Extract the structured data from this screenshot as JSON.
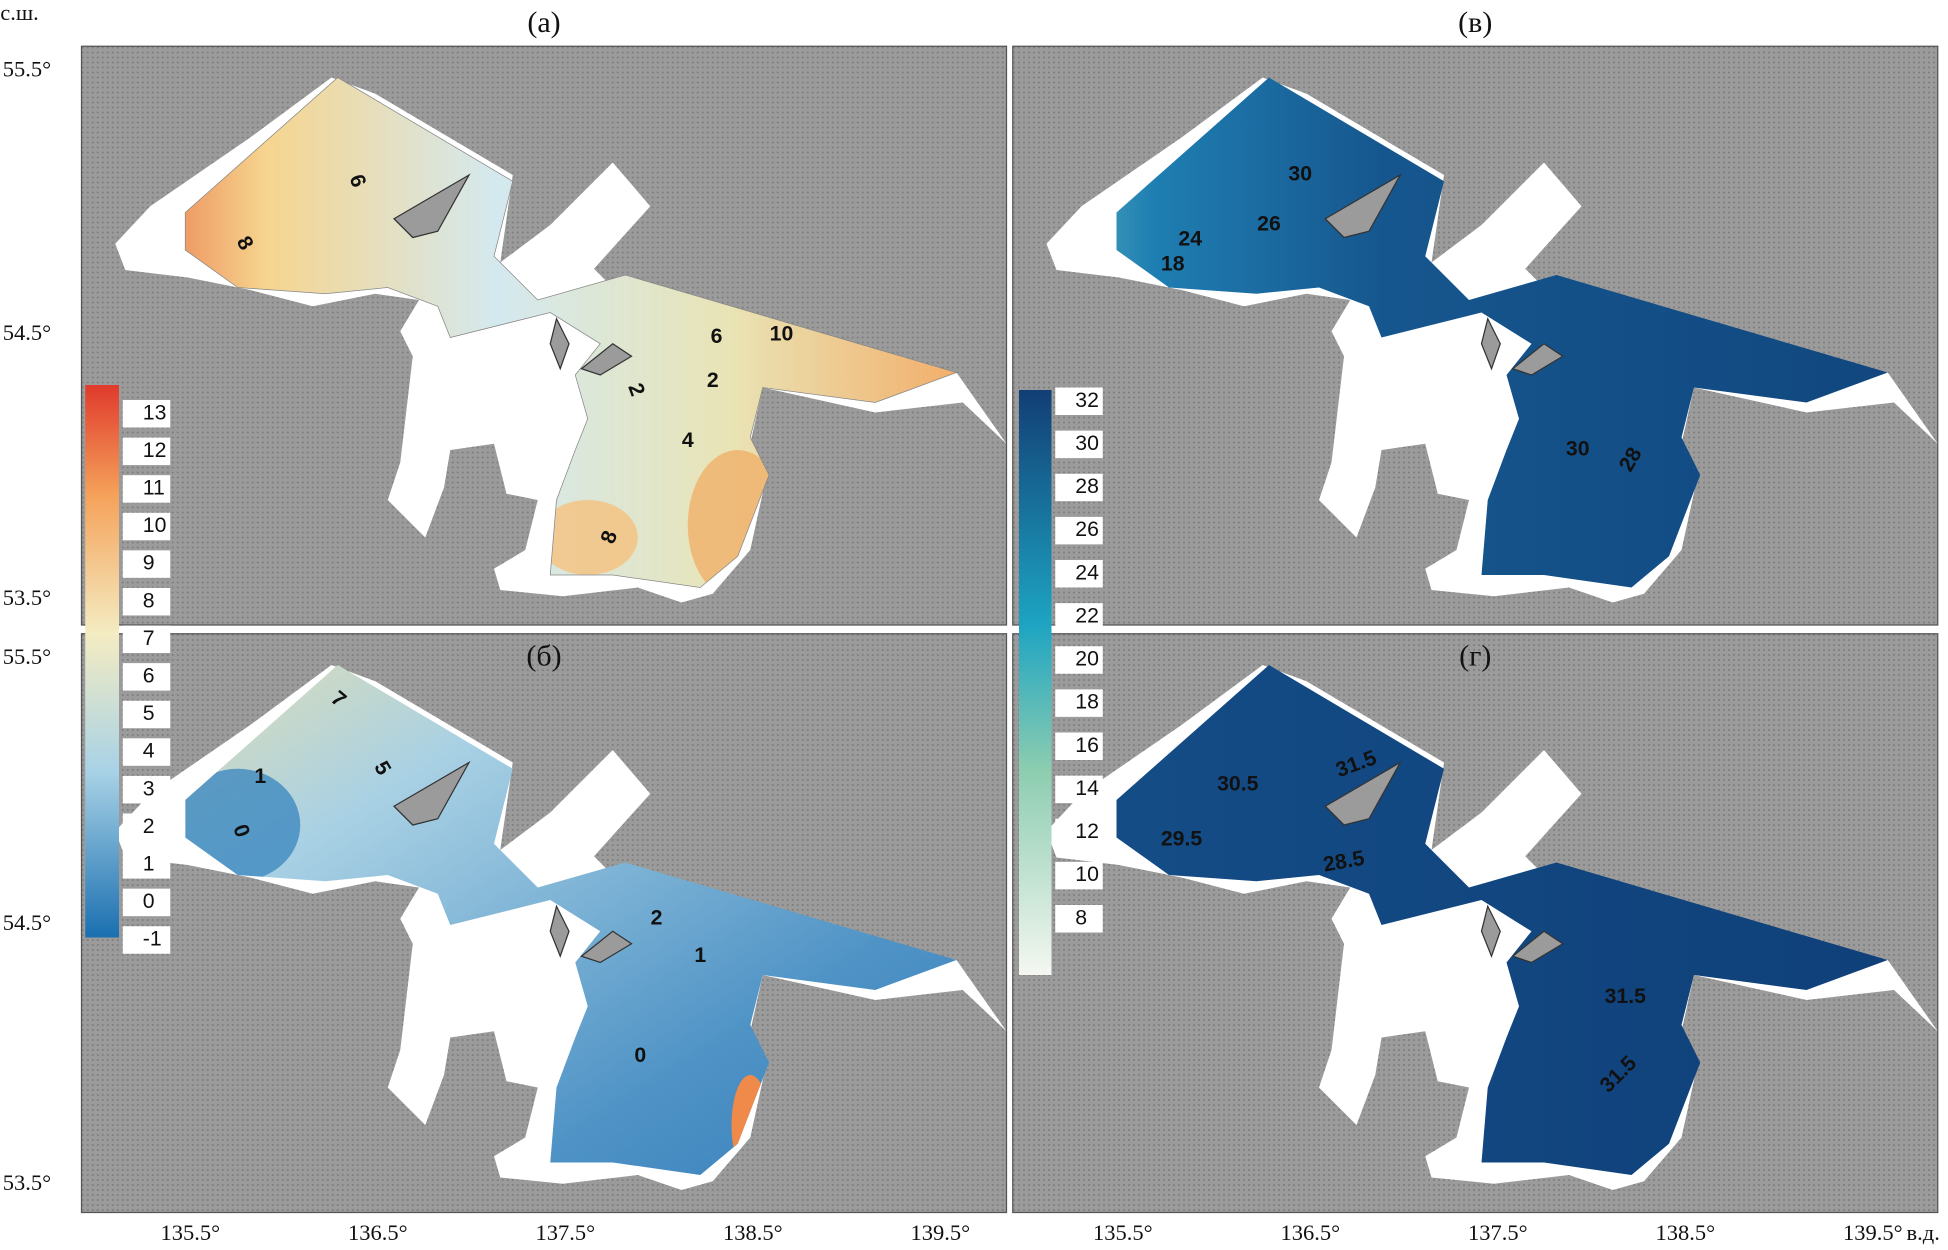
{
  "panels": [
    {
      "label": "(а)",
      "contour_labels": [
        "8",
        "6",
        "6",
        "10",
        "2",
        "2",
        "4",
        "8"
      ]
    },
    {
      "label": "(в)",
      "contour_labels": [
        "30",
        "24",
        "26",
        "18",
        "30",
        "28"
      ]
    },
    {
      "label": "(б)",
      "contour_labels": [
        "7",
        "5",
        "1",
        "0",
        "2",
        "1",
        "0"
      ]
    },
    {
      "label": "(г)",
      "contour_labels": [
        "31.5",
        "30.5",
        "29.5",
        "28.5",
        "31.5",
        "31.5"
      ]
    }
  ],
  "axes": {
    "lat_unit": "с.ш.",
    "lon_unit": "в.д.",
    "lat_ticks": [
      "55.5°",
      "54.5°",
      "53.5°"
    ],
    "lon_ticks": [
      "135.5°",
      "136.5°",
      "137.5°",
      "138.5°",
      "139.5°"
    ]
  },
  "colorbars": [
    {
      "labels": [
        "13",
        "12",
        "11",
        "10",
        "9",
        "8",
        "7",
        "6",
        "5",
        "4",
        "3",
        "2",
        "1",
        "0",
        "-1"
      ]
    },
    {
      "labels": [
        "32",
        "30",
        "28",
        "26",
        "24",
        "22",
        "20",
        "18",
        "16",
        "14",
        "12",
        "10",
        "8"
      ]
    }
  ]
}
